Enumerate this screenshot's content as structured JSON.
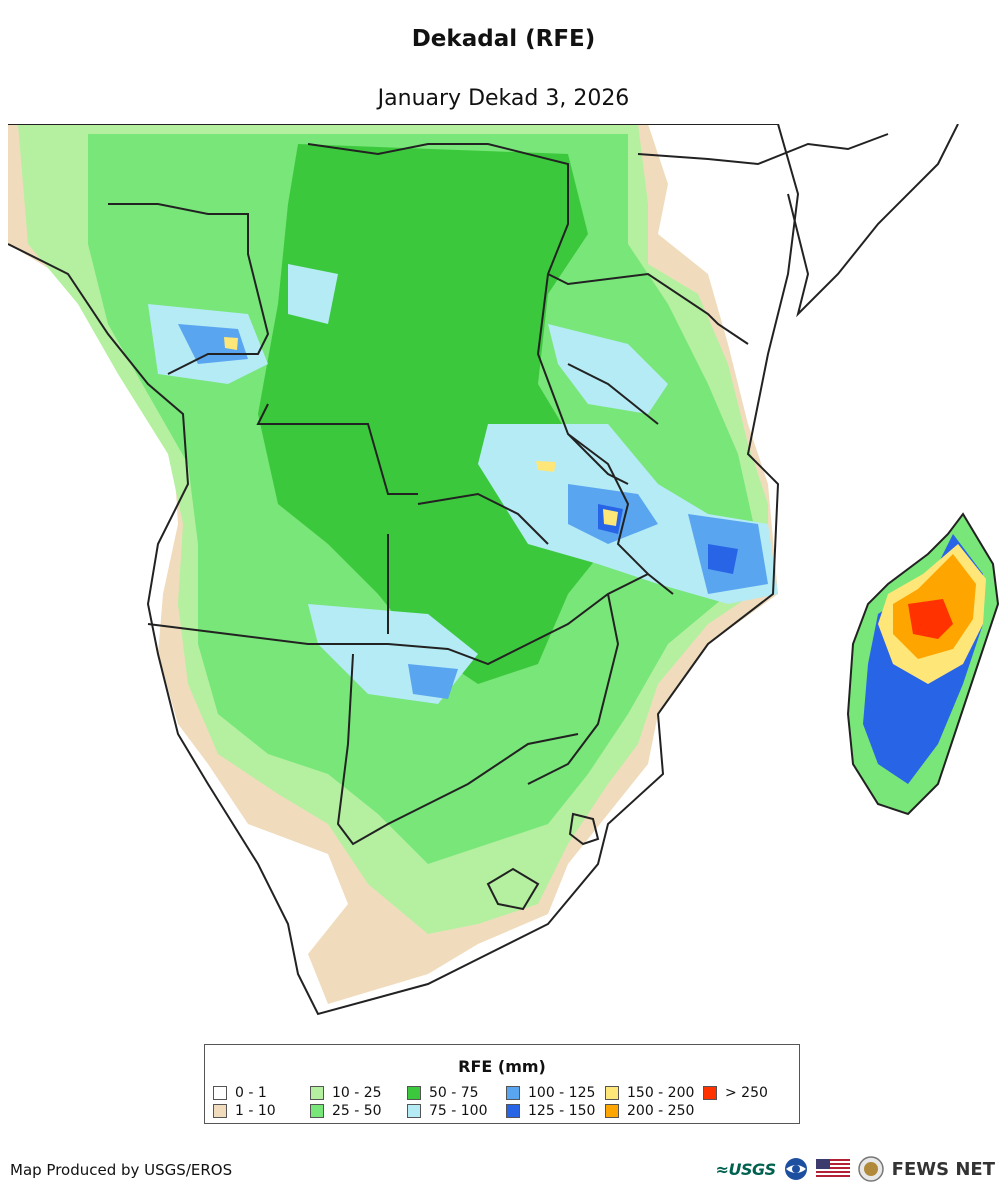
{
  "header": {
    "title": "Dekadal (RFE)",
    "subtitle": "January Dekad 3, 2026"
  },
  "legend": {
    "title": "RFE (mm)",
    "items": [
      {
        "label": "0 - 1",
        "color": "#ffffff"
      },
      {
        "label": "1 - 10",
        "color": "#f0dcbc"
      },
      {
        "label": "10 - 25",
        "color": "#b4f0a0"
      },
      {
        "label": "25 - 50",
        "color": "#78e678"
      },
      {
        "label": "50 - 75",
        "color": "#3cc83c"
      },
      {
        "label": "75 - 100",
        "color": "#b4ebf5"
      },
      {
        "label": "100 - 125",
        "color": "#5aa5f0"
      },
      {
        "label": "125 - 150",
        "color": "#2864e6"
      },
      {
        "label": "150 - 200",
        "color": "#ffe678"
      },
      {
        "label": "200 - 250",
        "color": "#ffa500"
      },
      {
        "label": "> 250",
        "color": "#ff3200"
      }
    ]
  },
  "footer": {
    "credit": "Map Produced by USGS/EROS",
    "logos": {
      "usgs": "≈USGS",
      "fews": "FEWS NET"
    }
  }
}
